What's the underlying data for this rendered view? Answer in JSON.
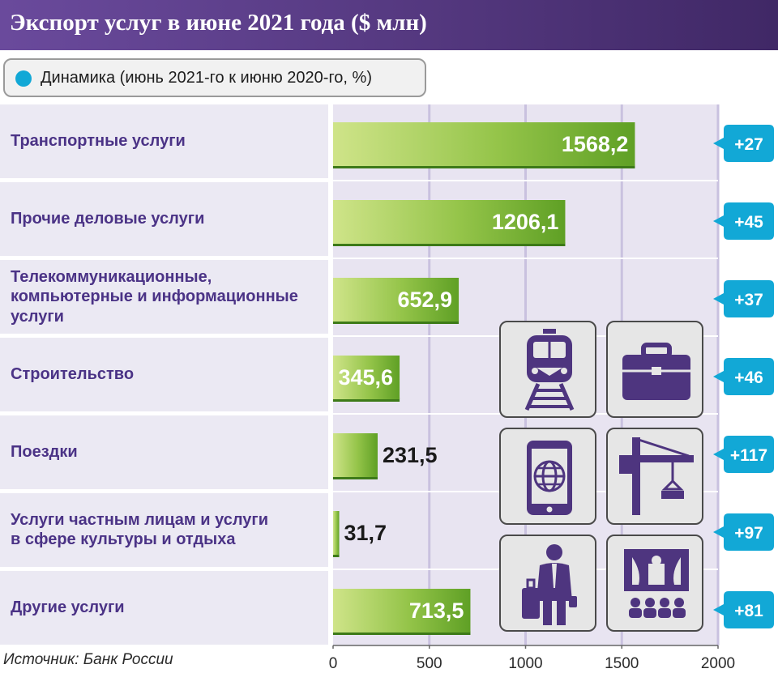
{
  "header": {
    "title": "Экспорт услуг в июне 2021 года ($ млн)"
  },
  "legend": {
    "label": "Динамика (июнь 2021-го к июню 2020-го, %)",
    "color": "#12a8d6"
  },
  "source": "Источник: Банк России",
  "icons": [
    "train-icon",
    "briefcase-icon",
    "smartphone-globe-icon",
    "construction-crane-icon",
    "traveler-luggage-icon",
    "theater-audience-icon"
  ],
  "colors": {
    "header": "#54387f",
    "category_text": "#4b3386",
    "bar_light": "#cfe489",
    "bar_dark": "#5fa025",
    "dynamics_badge": "#12a8d6"
  },
  "chart_data": {
    "type": "bar",
    "orientation": "horizontal",
    "title": "Экспорт услуг в июне 2021 года ($ млн)",
    "categories": [
      "Транспортные услуги",
      "Прочие деловые услуги",
      "Телекоммуникационные, компьютерные и информационные услуги",
      "Строительство",
      "Поездки",
      "Услуги частным лицам и услуги в сфере культуры и отдыха",
      "Другие услуги"
    ],
    "category_lines": [
      [
        "Транспортные услуги"
      ],
      [
        "Прочие деловые услуги"
      ],
      [
        "Телекоммуникационные,",
        "компьютерные и информационные",
        "услуги"
      ],
      [
        "Строительство"
      ],
      [
        "Поездки"
      ],
      [
        "Услуги частным лицам и услуги",
        "в сфере культуры и отдыха"
      ],
      [
        "Другие услуги"
      ]
    ],
    "values": [
      1568.2,
      1206.1,
      652.9,
      345.6,
      231.5,
      31.7,
      713.5
    ],
    "value_labels": [
      "1568,2",
      "1206,1",
      "652,9",
      "345,6",
      "231,5",
      "31,7",
      "713,5"
    ],
    "dynamics_labels": [
      "+27",
      "+45",
      "+37",
      "+46",
      "+117",
      "+97",
      "+81"
    ],
    "dynamics_series_name": "Динамика (июнь 2021-го к июню 2020-го, %)",
    "xlim": [
      0,
      2000
    ],
    "xticks": [
      "0",
      "500",
      "1000",
      "1500",
      "2000"
    ],
    "tick_values": [
      0,
      500,
      1000,
      1500,
      2000
    ],
    "grid": true,
    "legend_position": "top-left"
  }
}
